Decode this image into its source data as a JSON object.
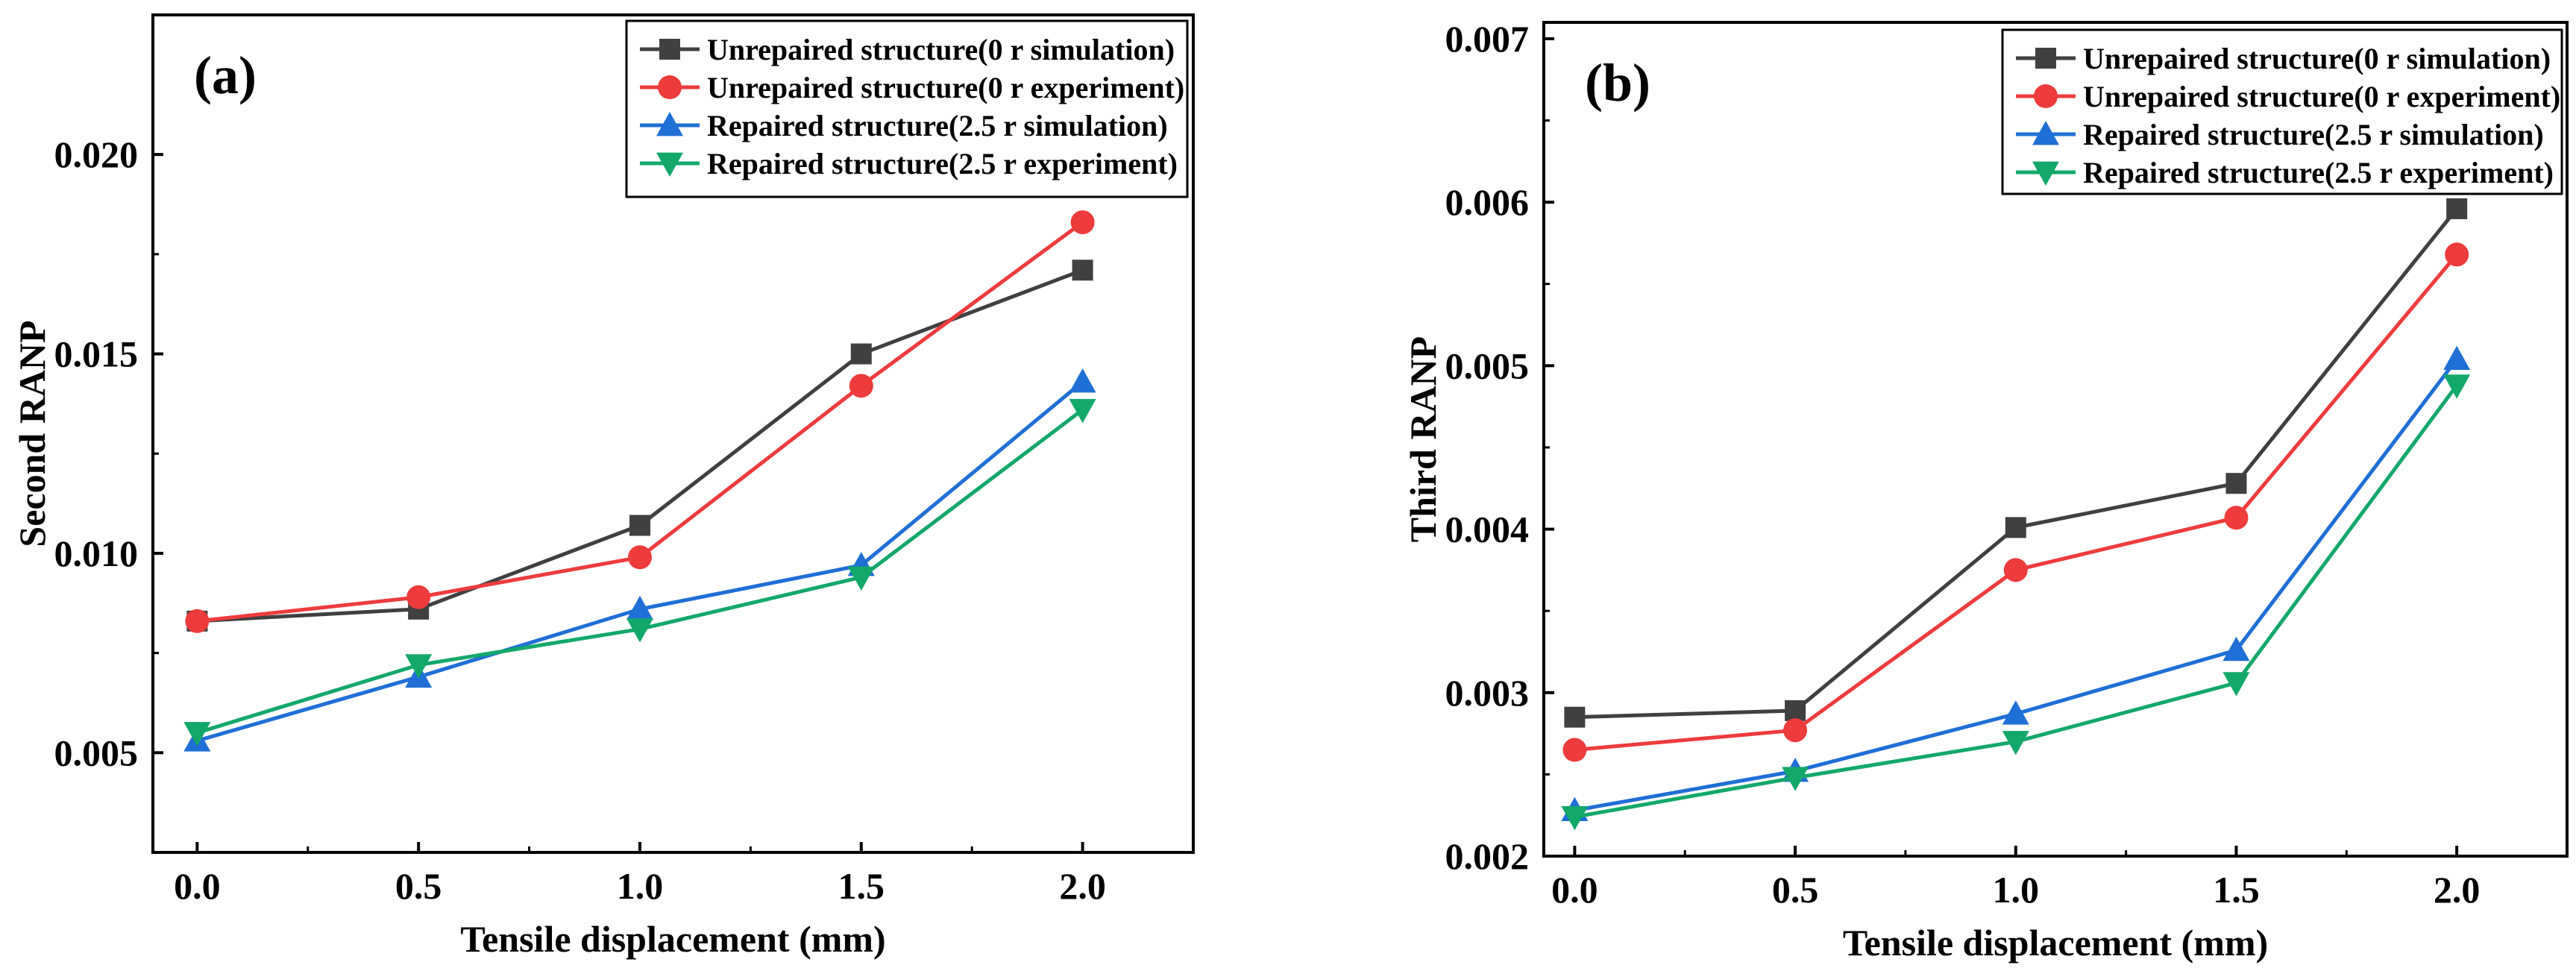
{
  "series_styles": [
    {
      "color": "#404040",
      "marker": "square"
    },
    {
      "color": "#ee3b3b",
      "marker": "circle"
    },
    {
      "color": "#1f6fd6",
      "marker": "triangle-up"
    },
    {
      "color": "#12a86a",
      "marker": "triangle-down"
    }
  ],
  "chart_data": [
    {
      "type": "line",
      "panel_label": "(a)",
      "title": "",
      "xlabel": "Tensile displacement (mm)",
      "ylabel": "Second RANP",
      "x": [
        0.0,
        0.5,
        1.0,
        1.5,
        2.0
      ],
      "xlim": [
        -0.1,
        2.25
      ],
      "ylim": [
        0.0025,
        0.0235
      ],
      "xticks": [
        0.0,
        0.5,
        1.0,
        1.5,
        2.0
      ],
      "xtick_labels": [
        "0.0",
        "0.5",
        "1.0",
        "1.5",
        "2.0"
      ],
      "yticks": [
        0.005,
        0.01,
        0.015,
        0.02
      ],
      "ytick_labels": [
        "0.005",
        "0.010",
        "0.015",
        "0.020"
      ],
      "legend_position": "top-right",
      "grid": false,
      "series": [
        {
          "name": "Unrepaired structure(0 r simulation)",
          "values": [
            0.0083,
            0.0086,
            0.0107,
            0.015,
            0.0171
          ]
        },
        {
          "name": "Unrepaired structure(0 r experiment)",
          "values": [
            0.0083,
            0.0089,
            0.0099,
            0.0142,
            0.0183
          ]
        },
        {
          "name": "Repaired structure(2.5 r simulation)",
          "values": [
            0.0053,
            0.0069,
            0.0086,
            0.0097,
            0.0143
          ]
        },
        {
          "name": "Repaired structure(2.5 r experiment)",
          "values": [
            0.0055,
            0.0072,
            0.0081,
            0.0094,
            0.0136
          ]
        }
      ]
    },
    {
      "type": "line",
      "panel_label": "(b)",
      "title": "",
      "xlabel": "Tensile displacement (mm)",
      "ylabel": "Third RANP",
      "x": [
        0.0,
        0.5,
        1.0,
        1.5,
        2.0
      ],
      "xlim": [
        -0.07,
        2.25
      ],
      "ylim": [
        0.002,
        0.0071
      ],
      "xticks": [
        0.0,
        0.5,
        1.0,
        1.5,
        2.0
      ],
      "xtick_labels": [
        "0.0",
        "0.5",
        "1.0",
        "1.5",
        "2.0"
      ],
      "yticks": [
        0.002,
        0.003,
        0.004,
        0.005,
        0.006,
        0.007
      ],
      "ytick_labels": [
        "0.002",
        "0.003",
        "0.004",
        "0.005",
        "0.006",
        "0.007"
      ],
      "legend_position": "top-right",
      "grid": false,
      "series": [
        {
          "name": "Unrepaired structure(0 r simulation)",
          "values": [
            0.00285,
            0.00289,
            0.00401,
            0.00428,
            0.00596
          ]
        },
        {
          "name": "Unrepaired structure(0 r experiment)",
          "values": [
            0.00265,
            0.00277,
            0.00375,
            0.00407,
            0.00568
          ]
        },
        {
          "name": "Repaired structure(2.5 r simulation)",
          "values": [
            0.00228,
            0.00252,
            0.00287,
            0.00326,
            0.00504
          ]
        },
        {
          "name": "Repaired structure(2.5 r experiment)",
          "values": [
            0.00224,
            0.00248,
            0.0027,
            0.00306,
            0.00488
          ]
        }
      ]
    }
  ]
}
